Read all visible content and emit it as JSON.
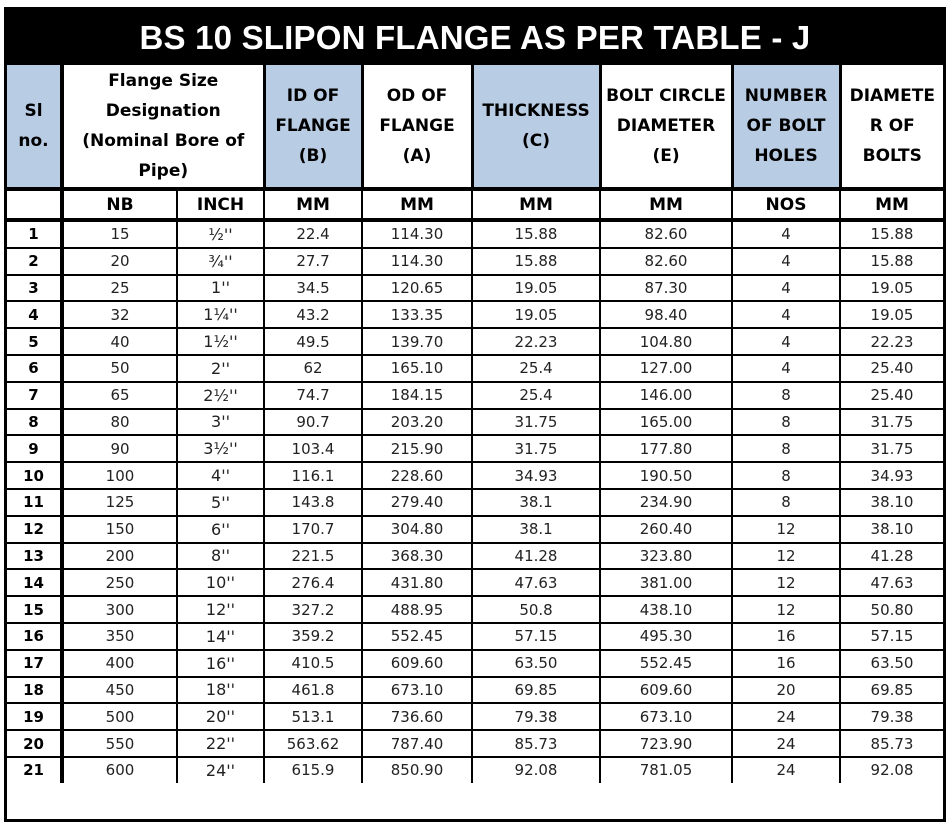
{
  "title": "BS 10 SLIPON FLANGE AS PER TABLE - J",
  "colors": {
    "title_bg": "#000000",
    "header_blue": "#b8cce4",
    "header_white": "#ffffff"
  },
  "headers": {
    "sl": "Sl no.",
    "flange_size": "Flange Size Designation (Nominal Bore of Pipe)",
    "id": "ID OF FLANGE (B)",
    "od": "OD OF FLANGE (A)",
    "thickness": "THICKNESS (C)",
    "bcd": "BOLT CIRCLE DIAMETER (E)",
    "holes": "NUMBER OF BOLT HOLES",
    "bolt_dia": "DIAMETE R OF BOLTS"
  },
  "units": {
    "sl": "",
    "nb": "NB",
    "inch": "INCH",
    "id": "MM",
    "od": "MM",
    "thickness": "MM",
    "bcd": "MM",
    "holes": "NOS",
    "bolt_dia": "MM"
  },
  "rows": [
    {
      "sl": "1",
      "nb": "15",
      "inch": "½''",
      "id": "22.4",
      "od": "114.30",
      "t": "15.88",
      "bcd": "82.60",
      "holes": "4",
      "bd": "15.88"
    },
    {
      "sl": "2",
      "nb": "20",
      "inch": "¾''",
      "id": "27.7",
      "od": "114.30",
      "t": "15.88",
      "bcd": "82.60",
      "holes": "4",
      "bd": "15.88"
    },
    {
      "sl": "3",
      "nb": "25",
      "inch": "1''",
      "id": "34.5",
      "od": "120.65",
      "t": "19.05",
      "bcd": "87.30",
      "holes": "4",
      "bd": "19.05"
    },
    {
      "sl": "4",
      "nb": "32",
      "inch": "1¼''",
      "id": "43.2",
      "od": "133.35",
      "t": "19.05",
      "bcd": "98.40",
      "holes": "4",
      "bd": "19.05"
    },
    {
      "sl": "5",
      "nb": "40",
      "inch": "1½''",
      "id": "49.5",
      "od": "139.70",
      "t": "22.23",
      "bcd": "104.80",
      "holes": "4",
      "bd": "22.23"
    },
    {
      "sl": "6",
      "nb": "50",
      "inch": "2''",
      "id": "62",
      "od": "165.10",
      "t": "25.4",
      "bcd": "127.00",
      "holes": "4",
      "bd": "25.40"
    },
    {
      "sl": "7",
      "nb": "65",
      "inch": "2½''",
      "id": "74.7",
      "od": "184.15",
      "t": "25.4",
      "bcd": "146.00",
      "holes": "8",
      "bd": "25.40"
    },
    {
      "sl": "8",
      "nb": "80",
      "inch": "3''",
      "id": "90.7",
      "od": "203.20",
      "t": "31.75",
      "bcd": "165.00",
      "holes": "8",
      "bd": "31.75"
    },
    {
      "sl": "9",
      "nb": "90",
      "inch": "3½''",
      "id": "103.4",
      "od": "215.90",
      "t": "31.75",
      "bcd": "177.80",
      "holes": "8",
      "bd": "31.75"
    },
    {
      "sl": "10",
      "nb": "100",
      "inch": "4''",
      "id": "116.1",
      "od": "228.60",
      "t": "34.93",
      "bcd": "190.50",
      "holes": "8",
      "bd": "34.93"
    },
    {
      "sl": "11",
      "nb": "125",
      "inch": "5''",
      "id": "143.8",
      "od": "279.40",
      "t": "38.1",
      "bcd": "234.90",
      "holes": "8",
      "bd": "38.10"
    },
    {
      "sl": "12",
      "nb": "150",
      "inch": "6''",
      "id": "170.7",
      "od": "304.80",
      "t": "38.1",
      "bcd": "260.40",
      "holes": "12",
      "bd": "38.10"
    },
    {
      "sl": "13",
      "nb": "200",
      "inch": "8''",
      "id": "221.5",
      "od": "368.30",
      "t": "41.28",
      "bcd": "323.80",
      "holes": "12",
      "bd": "41.28"
    },
    {
      "sl": "14",
      "nb": "250",
      "inch": "10''",
      "id": "276.4",
      "od": "431.80",
      "t": "47.63",
      "bcd": "381.00",
      "holes": "12",
      "bd": "47.63"
    },
    {
      "sl": "15",
      "nb": "300",
      "inch": "12''",
      "id": "327.2",
      "od": "488.95",
      "t": "50.8",
      "bcd": "438.10",
      "holes": "12",
      "bd": "50.80"
    },
    {
      "sl": "16",
      "nb": "350",
      "inch": "14''",
      "id": "359.2",
      "od": "552.45",
      "t": "57.15",
      "bcd": "495.30",
      "holes": "16",
      "bd": "57.15"
    },
    {
      "sl": "17",
      "nb": "400",
      "inch": "16''",
      "id": "410.5",
      "od": "609.60",
      "t": "63.50",
      "bcd": "552.45",
      "holes": "16",
      "bd": "63.50"
    },
    {
      "sl": "18",
      "nb": "450",
      "inch": "18''",
      "id": "461.8",
      "od": "673.10",
      "t": "69.85",
      "bcd": "609.60",
      "holes": "20",
      "bd": "69.85"
    },
    {
      "sl": "19",
      "nb": "500",
      "inch": "20''",
      "id": "513.1",
      "od": "736.60",
      "t": "79.38",
      "bcd": "673.10",
      "holes": "24",
      "bd": "79.38"
    },
    {
      "sl": "20",
      "nb": "550",
      "inch": "22''",
      "id": "563.62",
      "od": "787.40",
      "t": "85.73",
      "bcd": "723.90",
      "holes": "24",
      "bd": "85.73"
    },
    {
      "sl": "21",
      "nb": "600",
      "inch": "24''",
      "id": "615.9",
      "od": "850.90",
      "t": "92.08",
      "bcd": "781.05",
      "holes": "24",
      "bd": "92.08"
    }
  ]
}
